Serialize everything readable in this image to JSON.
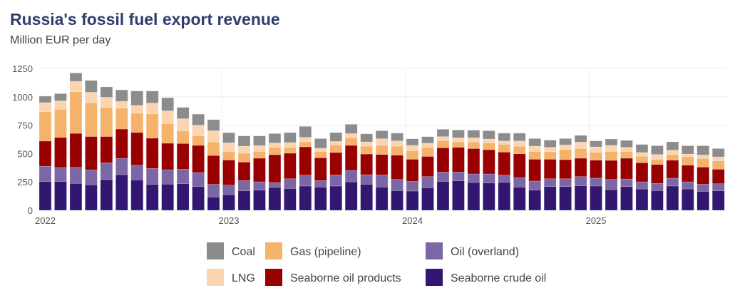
{
  "chart_data": {
    "type": "bar",
    "stacked": true,
    "title": "Russia's fossil fuel export revenue",
    "subtitle": "Million EUR per day",
    "xlabel": "",
    "ylabel": "Million EUR per day",
    "ylim": [
      0,
      1250
    ],
    "yticks": [
      0,
      250,
      500,
      750,
      1000,
      1250
    ],
    "xtick_labels": [
      {
        "label": "2022",
        "index": 0
      },
      {
        "label": "2023",
        "index": 12
      },
      {
        "label": "2024",
        "index": 24
      },
      {
        "label": "2025",
        "index": 36
      }
    ],
    "grid": true,
    "legend_position": "bottom",
    "categories": [
      "2022-01",
      "2022-02",
      "2022-03",
      "2022-04",
      "2022-05",
      "2022-06",
      "2022-07",
      "2022-08",
      "2022-09",
      "2022-10",
      "2022-11",
      "2022-12",
      "2023-01",
      "2023-02",
      "2023-03",
      "2023-04",
      "2023-05",
      "2023-06",
      "2023-07",
      "2023-08",
      "2023-09",
      "2023-10",
      "2023-11",
      "2023-12",
      "2024-01",
      "2024-02",
      "2024-03",
      "2024-04",
      "2024-05",
      "2024-06",
      "2024-07",
      "2024-08",
      "2024-09",
      "2024-10",
      "2024-11",
      "2024-12",
      "2025-01",
      "2025-02",
      "2025-03",
      "2025-04",
      "2025-05",
      "2025-06",
      "2025-07",
      "2025-08",
      "2025-09"
    ],
    "series": [
      {
        "name": "Seaborne crude oil",
        "color": "#33166f",
        "values": [
          254,
          254,
          237,
          225,
          271,
          314,
          267,
          229,
          231,
          235,
          210,
          117,
          138,
          172,
          178,
          201,
          193,
          214,
          205,
          214,
          251,
          230,
          205,
          174,
          170,
          199,
          255,
          260,
          245,
          241,
          247,
          205,
          178,
          209,
          209,
          216,
          214,
          182,
          209,
          188,
          174,
          214,
          188,
          167,
          172
        ]
      },
      {
        "name": "Oil (overland)",
        "color": "#7b66a6",
        "values": [
          134,
          123,
          142,
          131,
          148,
          144,
          131,
          140,
          127,
          127,
          123,
          112,
          84,
          90,
          73,
          44,
          85,
          96,
          57,
          98,
          101,
          84,
          107,
          98,
          85,
          98,
          82,
          77,
          75,
          79,
          63,
          84,
          80,
          69,
          69,
          81,
          69,
          90,
          67,
          63,
          63,
          69,
          63,
          63,
          62
        ]
      },
      {
        "name": "Seaborne oil products",
        "color": "#990000",
        "values": [
          222,
          265,
          299,
          294,
          231,
          258,
          288,
          267,
          233,
          227,
          239,
          254,
          221,
          163,
          208,
          245,
          225,
          249,
          201,
          197,
          220,
          182,
          180,
          214,
          195,
          178,
          214,
          218,
          224,
          214,
          203,
          209,
          192,
          172,
          168,
          162,
          159,
          168,
          183,
          168,
          167,
          159,
          147,
          151,
          128
        ]
      },
      {
        "name": "Gas (pipeline)",
        "color": "#f5b26b",
        "values": [
          259,
          248,
          366,
          297,
          257,
          184,
          170,
          214,
          174,
          110,
          83,
          119,
          76,
          78,
          60,
          65,
          52,
          44,
          56,
          67,
          67,
          69,
          80,
          79,
          74,
          80,
          62,
          48,
          57,
          59,
          69,
          67,
          69,
          67,
          88,
          85,
          69,
          79,
          60,
          58,
          46,
          50,
          73,
          76,
          74
        ]
      },
      {
        "name": "LNG",
        "color": "#fcd5b0",
        "values": [
          80,
          74,
          92,
          93,
          89,
          60,
          68,
          95,
          112,
          108,
          95,
          99,
          76,
          62,
          51,
          38,
          42,
          40,
          28,
          31,
          37,
          38,
          58,
          47,
          48,
          36,
          36,
          36,
          38,
          35,
          29,
          46,
          46,
          38,
          42,
          57,
          48,
          53,
          36,
          32,
          42,
          38,
          25,
          31,
          35
        ]
      },
      {
        "name": "Coal",
        "color": "#8c8c8c",
        "values": [
          57,
          64,
          74,
          104,
          91,
          101,
          127,
          106,
          115,
          100,
          97,
          98,
          89,
          90,
          85,
          83,
          88,
          96,
          85,
          78,
          82,
          71,
          71,
          68,
          58,
          58,
          65,
          69,
          67,
          73,
          69,
          69,
          67,
          63,
          56,
          59,
          52,
          56,
          61,
          71,
          77,
          73,
          73,
          81,
          73
        ]
      }
    ],
    "legend_order": [
      5,
      3,
      1,
      4,
      2,
      0
    ]
  }
}
